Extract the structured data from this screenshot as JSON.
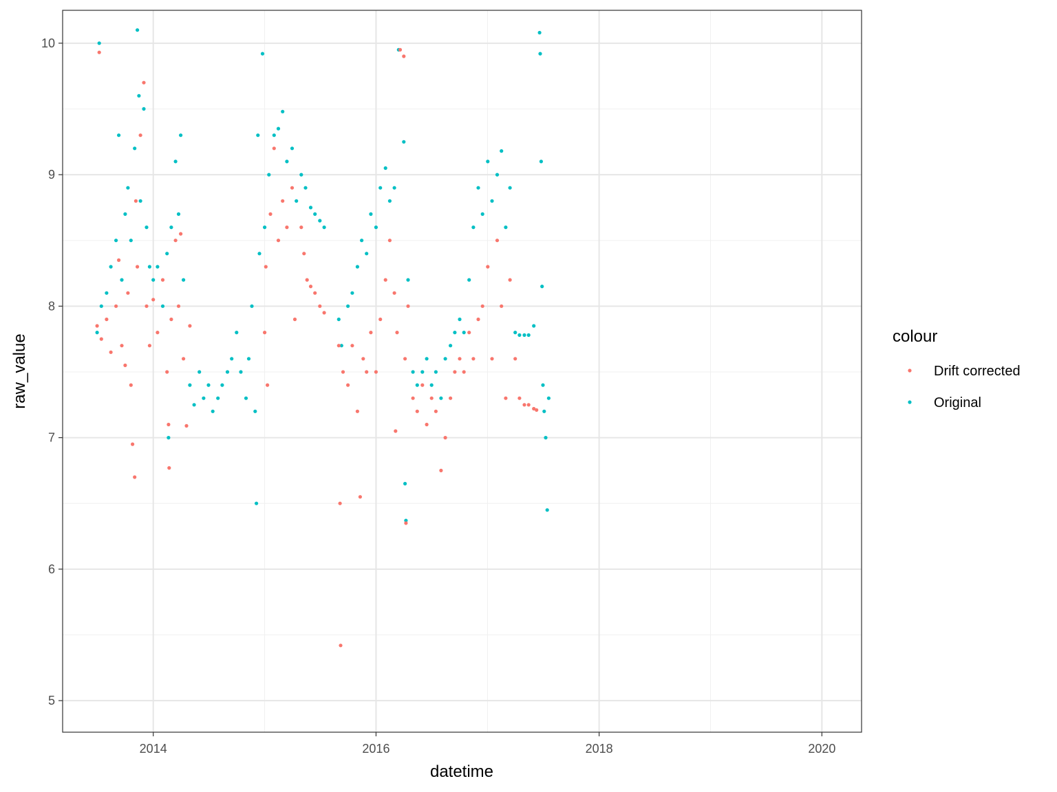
{
  "chart_data": {
    "type": "scatter",
    "xlabel": "datetime",
    "ylabel": "raw_value",
    "x_type": "date",
    "xlim": [
      "2013-03-10",
      "2020-05-10"
    ],
    "ylim": [
      4.76,
      10.25
    ],
    "x_ticks": [
      "2014",
      "2016",
      "2018",
      "2020"
    ],
    "x_tick_dates": [
      "2014-01-01",
      "2016-01-01",
      "2018-01-01",
      "2020-01-01"
    ],
    "y_ticks": [
      5,
      6,
      7,
      8,
      9,
      10
    ],
    "grid": true,
    "legend": {
      "title": "colour",
      "position": "right",
      "entries": [
        "Drift corrected",
        "Original"
      ]
    },
    "series": [
      {
        "name": "Drift corrected",
        "color": "#F8766D",
        "points": [
          [
            "2013-07-01",
            7.85
          ],
          [
            "2013-07-08",
            9.93
          ],
          [
            "2013-07-15",
            7.75
          ],
          [
            "2013-08-01",
            7.9
          ],
          [
            "2013-08-15",
            7.65
          ],
          [
            "2013-09-01",
            8.0
          ],
          [
            "2013-09-10",
            8.35
          ],
          [
            "2013-09-20",
            7.7
          ],
          [
            "2013-10-01",
            7.55
          ],
          [
            "2013-10-10",
            8.1
          ],
          [
            "2013-10-20",
            7.4
          ],
          [
            "2013-10-25",
            6.95
          ],
          [
            "2013-11-01",
            6.7
          ],
          [
            "2013-11-05",
            8.8
          ],
          [
            "2013-11-10",
            8.3
          ],
          [
            "2013-11-20",
            9.3
          ],
          [
            "2013-12-01",
            9.7
          ],
          [
            "2013-12-10",
            8.0
          ],
          [
            "2013-12-20",
            7.7
          ],
          [
            "2014-01-01",
            8.05
          ],
          [
            "2014-01-15",
            7.8
          ],
          [
            "2014-02-01",
            8.2
          ],
          [
            "2014-02-15",
            7.5
          ],
          [
            "2014-02-20",
            7.1
          ],
          [
            "2014-02-22",
            6.77
          ],
          [
            "2014-03-01",
            7.9
          ],
          [
            "2014-03-15",
            8.5
          ],
          [
            "2014-03-25",
            8.0
          ],
          [
            "2014-04-01",
            8.55
          ],
          [
            "2014-04-10",
            7.6
          ],
          [
            "2014-04-20",
            7.09
          ],
          [
            "2014-05-01",
            7.85
          ],
          [
            "2015-01-01",
            7.8
          ],
          [
            "2015-01-05",
            8.3
          ],
          [
            "2015-01-10",
            7.4
          ],
          [
            "2015-01-20",
            8.7
          ],
          [
            "2015-02-01",
            9.2
          ],
          [
            "2015-02-15",
            8.5
          ],
          [
            "2015-03-01",
            8.8
          ],
          [
            "2015-03-15",
            8.6
          ],
          [
            "2015-04-01",
            8.9
          ],
          [
            "2015-04-10",
            7.9
          ],
          [
            "2015-05-01",
            8.6
          ],
          [
            "2015-05-10",
            8.4
          ],
          [
            "2015-05-20",
            8.2
          ],
          [
            "2015-06-01",
            8.15
          ],
          [
            "2015-06-15",
            8.1
          ],
          [
            "2015-07-01",
            8.0
          ],
          [
            "2015-07-15",
            7.95
          ],
          [
            "2015-09-01",
            7.7
          ],
          [
            "2015-09-05",
            6.5
          ],
          [
            "2015-09-07",
            5.42
          ],
          [
            "2015-09-15",
            7.5
          ],
          [
            "2015-10-01",
            7.4
          ],
          [
            "2015-10-15",
            7.7
          ],
          [
            "2015-11-01",
            7.2
          ],
          [
            "2015-11-10",
            6.55
          ],
          [
            "2015-11-20",
            7.6
          ],
          [
            "2015-12-01",
            7.5
          ],
          [
            "2015-12-15",
            7.8
          ],
          [
            "2016-01-01",
            7.5
          ],
          [
            "2016-01-15",
            7.9
          ],
          [
            "2016-02-01",
            8.2
          ],
          [
            "2016-02-15",
            8.5
          ],
          [
            "2016-03-01",
            8.1
          ],
          [
            "2016-03-05",
            7.05
          ],
          [
            "2016-03-10",
            7.8
          ],
          [
            "2016-03-20",
            9.95
          ],
          [
            "2016-04-01",
            9.9
          ],
          [
            "2016-04-05",
            7.6
          ],
          [
            "2016-04-08",
            6.35
          ],
          [
            "2016-04-15",
            8.0
          ],
          [
            "2016-05-01",
            7.3
          ],
          [
            "2016-05-15",
            7.2
          ],
          [
            "2016-06-01",
            7.4
          ],
          [
            "2016-06-15",
            7.1
          ],
          [
            "2016-07-01",
            7.3
          ],
          [
            "2016-07-15",
            7.2
          ],
          [
            "2016-08-01",
            6.75
          ],
          [
            "2016-08-15",
            7.0
          ],
          [
            "2016-09-01",
            7.3
          ],
          [
            "2016-09-15",
            7.5
          ],
          [
            "2016-10-01",
            7.6
          ],
          [
            "2016-10-15",
            7.5
          ],
          [
            "2016-11-01",
            7.8
          ],
          [
            "2016-11-15",
            7.6
          ],
          [
            "2016-12-01",
            7.9
          ],
          [
            "2016-12-15",
            8.0
          ],
          [
            "2017-01-01",
            8.3
          ],
          [
            "2017-01-15",
            7.6
          ],
          [
            "2017-02-01",
            8.5
          ],
          [
            "2017-02-15",
            8.0
          ],
          [
            "2017-03-01",
            7.3
          ],
          [
            "2017-03-15",
            8.2
          ],
          [
            "2017-04-01",
            7.6
          ],
          [
            "2017-04-15",
            7.3
          ],
          [
            "2017-05-01",
            7.25
          ],
          [
            "2017-05-15",
            7.25
          ],
          [
            "2017-06-01",
            7.22
          ],
          [
            "2017-06-10",
            7.21
          ]
        ]
      },
      {
        "name": "Original",
        "color": "#00BFC4",
        "points": [
          [
            "2013-07-01",
            7.8
          ],
          [
            "2013-07-08",
            10.0
          ],
          [
            "2013-07-15",
            8.0
          ],
          [
            "2013-08-01",
            8.1
          ],
          [
            "2013-08-15",
            8.3
          ],
          [
            "2013-09-01",
            8.5
          ],
          [
            "2013-09-10",
            9.3
          ],
          [
            "2013-09-20",
            8.2
          ],
          [
            "2013-10-01",
            8.7
          ],
          [
            "2013-10-10",
            8.9
          ],
          [
            "2013-10-20",
            8.5
          ],
          [
            "2013-11-01",
            9.2
          ],
          [
            "2013-11-10",
            10.1
          ],
          [
            "2013-11-15",
            9.6
          ],
          [
            "2013-11-20",
            8.8
          ],
          [
            "2013-12-01",
            9.5
          ],
          [
            "2013-12-10",
            8.6
          ],
          [
            "2013-12-20",
            8.3
          ],
          [
            "2014-01-01",
            8.2
          ],
          [
            "2014-01-15",
            8.3
          ],
          [
            "2014-02-01",
            8.0
          ],
          [
            "2014-02-15",
            8.4
          ],
          [
            "2014-02-20",
            7.0
          ],
          [
            "2014-03-01",
            8.6
          ],
          [
            "2014-03-15",
            9.1
          ],
          [
            "2014-03-25",
            8.7
          ],
          [
            "2014-04-01",
            9.3
          ],
          [
            "2014-04-10",
            8.2
          ],
          [
            "2014-05-01",
            7.4
          ],
          [
            "2014-05-15",
            7.25
          ],
          [
            "2014-06-01",
            7.5
          ],
          [
            "2014-06-15",
            7.3
          ],
          [
            "2014-07-01",
            7.4
          ],
          [
            "2014-07-15",
            7.2
          ],
          [
            "2014-08-01",
            7.3
          ],
          [
            "2014-08-15",
            7.4
          ],
          [
            "2014-09-01",
            7.5
          ],
          [
            "2014-09-15",
            7.6
          ],
          [
            "2014-10-01",
            7.8
          ],
          [
            "2014-10-15",
            7.5
          ],
          [
            "2014-11-01",
            7.3
          ],
          [
            "2014-11-10",
            7.6
          ],
          [
            "2014-11-20",
            8.0
          ],
          [
            "2014-12-01",
            7.2
          ],
          [
            "2014-12-05",
            6.5
          ],
          [
            "2014-12-10",
            9.3
          ],
          [
            "2014-12-15",
            8.4
          ],
          [
            "2014-12-25",
            9.92
          ],
          [
            "2015-01-01",
            8.6
          ],
          [
            "2015-01-15",
            9.0
          ],
          [
            "2015-02-01",
            9.3
          ],
          [
            "2015-02-15",
            9.35
          ],
          [
            "2015-03-01",
            9.48
          ],
          [
            "2015-03-15",
            9.1
          ],
          [
            "2015-04-01",
            9.2
          ],
          [
            "2015-04-15",
            8.8
          ],
          [
            "2015-05-01",
            9.0
          ],
          [
            "2015-05-15",
            8.9
          ],
          [
            "2015-06-01",
            8.75
          ],
          [
            "2015-06-15",
            8.7
          ],
          [
            "2015-07-01",
            8.65
          ],
          [
            "2015-07-15",
            8.6
          ],
          [
            "2015-09-01",
            7.9
          ],
          [
            "2015-09-10",
            7.7
          ],
          [
            "2015-10-01",
            8.0
          ],
          [
            "2015-10-15",
            8.1
          ],
          [
            "2015-11-01",
            8.3
          ],
          [
            "2015-11-15",
            8.5
          ],
          [
            "2015-12-01",
            8.4
          ],
          [
            "2015-12-15",
            8.7
          ],
          [
            "2016-01-01",
            8.6
          ],
          [
            "2016-01-15",
            8.9
          ],
          [
            "2016-02-01",
            9.05
          ],
          [
            "2016-02-15",
            8.8
          ],
          [
            "2016-03-01",
            8.9
          ],
          [
            "2016-03-15",
            9.95
          ],
          [
            "2016-04-01",
            9.25
          ],
          [
            "2016-04-05",
            6.65
          ],
          [
            "2016-04-08",
            6.37
          ],
          [
            "2016-04-15",
            8.2
          ],
          [
            "2016-05-01",
            7.5
          ],
          [
            "2016-05-15",
            7.4
          ],
          [
            "2016-06-01",
            7.5
          ],
          [
            "2016-06-15",
            7.6
          ],
          [
            "2016-07-01",
            7.4
          ],
          [
            "2016-07-15",
            7.5
          ],
          [
            "2016-08-01",
            7.3
          ],
          [
            "2016-08-15",
            7.6
          ],
          [
            "2016-09-01",
            7.7
          ],
          [
            "2016-09-15",
            7.8
          ],
          [
            "2016-10-01",
            7.9
          ],
          [
            "2016-10-15",
            7.8
          ],
          [
            "2016-11-01",
            8.2
          ],
          [
            "2016-11-15",
            8.6
          ],
          [
            "2016-12-01",
            8.9
          ],
          [
            "2016-12-15",
            8.7
          ],
          [
            "2017-01-01",
            9.1
          ],
          [
            "2017-01-15",
            8.8
          ],
          [
            "2017-02-01",
            9.0
          ],
          [
            "2017-02-15",
            9.18
          ],
          [
            "2017-03-01",
            8.6
          ],
          [
            "2017-03-15",
            8.9
          ],
          [
            "2017-04-01",
            7.8
          ],
          [
            "2017-04-15",
            7.78
          ],
          [
            "2017-05-01",
            7.78
          ],
          [
            "2017-05-15",
            7.78
          ],
          [
            "2017-06-01",
            7.85
          ],
          [
            "2017-06-20",
            10.08
          ],
          [
            "2017-06-22",
            9.92
          ],
          [
            "2017-06-25",
            9.1
          ],
          [
            "2017-06-28",
            8.15
          ],
          [
            "2017-07-01",
            7.4
          ],
          [
            "2017-07-05",
            7.2
          ],
          [
            "2017-07-10",
            7.0
          ],
          [
            "2017-07-15",
            6.45
          ],
          [
            "2017-07-20",
            7.3
          ]
        ]
      }
    ]
  }
}
